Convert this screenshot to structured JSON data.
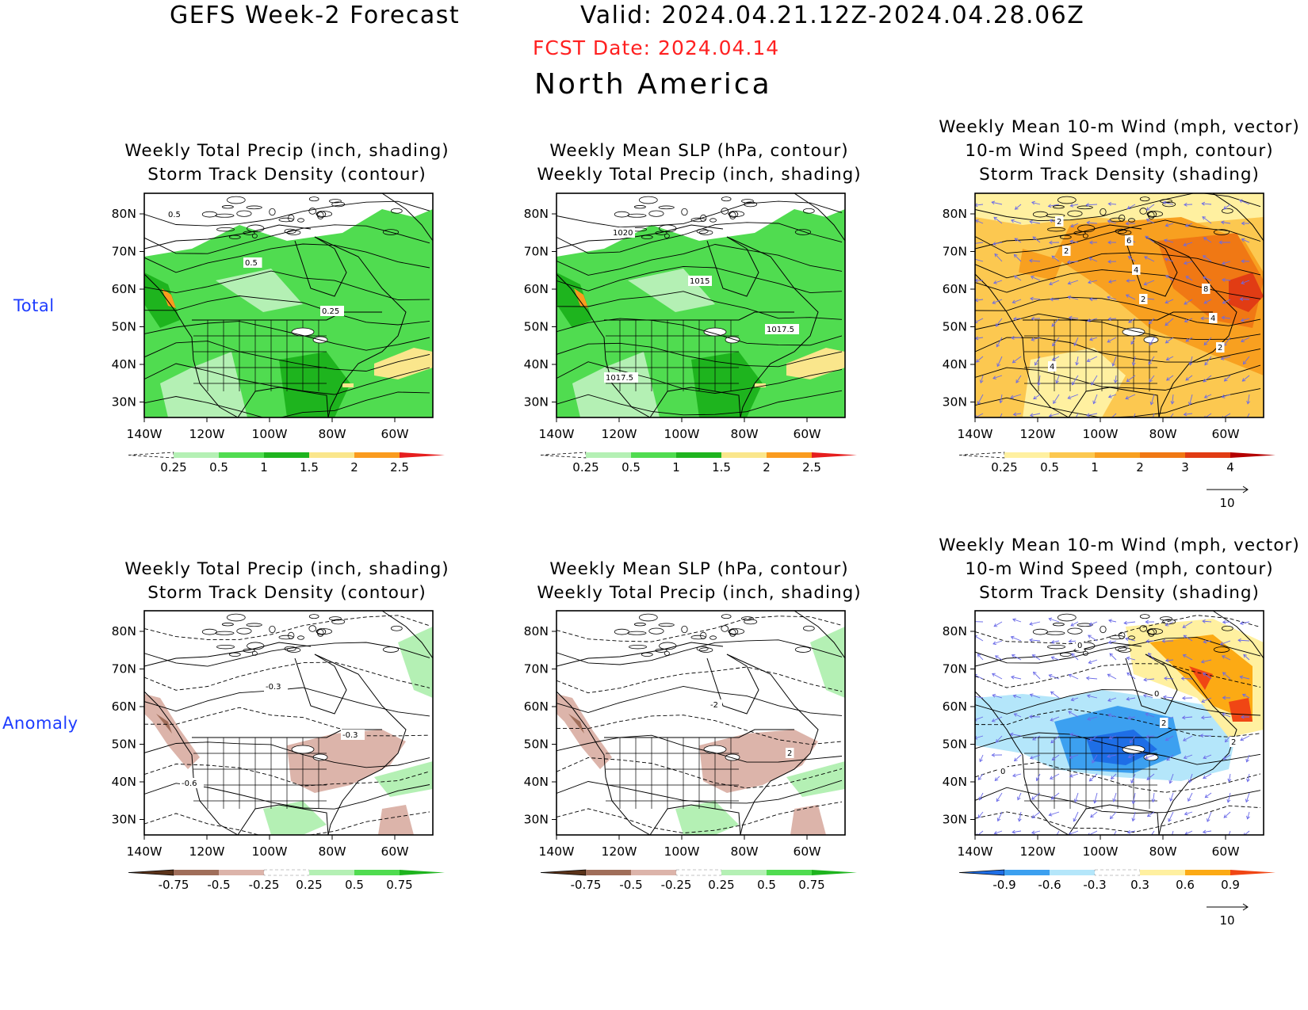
{
  "header": {
    "title_left": "GEFS Week-2 Forecast",
    "title_valid": "Valid: 2024.04.21.12Z-2024.04.28.06Z",
    "fcst_date": "FCST Date: 2024.04.14",
    "region": "North America"
  },
  "row_labels": [
    "Total",
    "Anomaly"
  ],
  "axis": {
    "lon_ticks": [
      "140W",
      "120W",
      "100W",
      "80W",
      "60W"
    ],
    "lat_ticks": [
      "80N",
      "70N",
      "60N",
      "50N",
      "40N",
      "30N"
    ]
  },
  "colors": {
    "precip_total": [
      "#ffffff",
      "#b4f0b4",
      "#50dc50",
      "#1eb41e",
      "#fae68c",
      "#fa9b1e",
      "#e61e1e"
    ],
    "precip_anom": [
      "#5a3219",
      "#a06e5a",
      "#dcb4aa",
      "#ffffff",
      "#b4f0b4",
      "#50dc50",
      "#1eb41e"
    ],
    "storm_total": [
      "#ffffff",
      "#fff0a0",
      "#fcc850",
      "#f8a020",
      "#f07814",
      "#e13c14",
      "#b40000"
    ],
    "storm_anom": [
      "#1e6ee6",
      "#3ca0f0",
      "#b4e6fa",
      "#ffffff",
      "#fff0a0",
      "#fcaa14",
      "#f04614"
    ],
    "vector": "#6a6ae8"
  },
  "panels": [
    {
      "title_lines": [
        "Weekly Total Precip (inch, shading)",
        "Storm Track Density (contour)"
      ],
      "field": "precip_total",
      "colorbar": {
        "labels": [
          "0.25",
          "0.5",
          "1",
          "1.5",
          "2",
          "2.5"
        ],
        "palette": "precip_total"
      },
      "contour_labels": [
        "0.5",
        "0.5",
        "0.25"
      ]
    },
    {
      "title_lines": [
        "Weekly Mean SLP (hPa, contour)",
        "Weekly Total Precip (inch, shading)"
      ],
      "field": "precip_total",
      "colorbar": {
        "labels": [
          "0.25",
          "0.5",
          "1",
          "1.5",
          "2",
          "2.5"
        ],
        "palette": "precip_total"
      },
      "contour_labels": [
        "1020",
        "1015",
        "1017.5",
        "1017.5"
      ]
    },
    {
      "title_lines": [
        "Weekly Mean 10-m Wind (mph, vector)",
        "10-m Wind Speed (mph, contour)",
        "Storm Track Density (shading)"
      ],
      "field": "storm_total",
      "colorbar": {
        "labels": [
          "0.25",
          "0.5",
          "1",
          "2",
          "3",
          "4"
        ],
        "palette": "storm_total"
      },
      "vector_ref": "10",
      "contour_labels": [
        "2",
        "2",
        "2",
        "2",
        "4",
        "4",
        "4",
        "6",
        "8"
      ]
    },
    {
      "title_lines": [
        "Weekly Total Precip (inch, shading)",
        "Storm Track Density (contour)"
      ],
      "field": "precip_anom",
      "colorbar": {
        "labels": [
          "-0.75",
          "-0.5",
          "-0.25",
          "0.25",
          "0.5",
          "0.75"
        ],
        "palette": "precip_anom"
      },
      "contour_labels": [
        "-0.3",
        "-0.3",
        "-0.6"
      ]
    },
    {
      "title_lines": [
        "Weekly Mean SLP (hPa, contour)",
        "Weekly Total Precip (inch, shading)"
      ],
      "field": "precip_anom",
      "colorbar": {
        "labels": [
          "-0.75",
          "-0.5",
          "-0.25",
          "0.25",
          "0.5",
          "0.75"
        ],
        "palette": "precip_anom"
      },
      "contour_labels": [
        "-2",
        "2"
      ]
    },
    {
      "title_lines": [
        "Weekly Mean 10-m Wind (mph, vector)",
        "10-m Wind Speed (mph, contour)",
        "Storm Track Density (shading)"
      ],
      "field": "storm_anom",
      "colorbar": {
        "labels": [
          "-0.9",
          "-0.6",
          "-0.3",
          "0.3",
          "0.6",
          "0.9"
        ],
        "palette": "storm_anom"
      },
      "vector_ref": "10",
      "contour_labels": [
        "2",
        "0",
        "0",
        "0",
        "2"
      ]
    }
  ]
}
